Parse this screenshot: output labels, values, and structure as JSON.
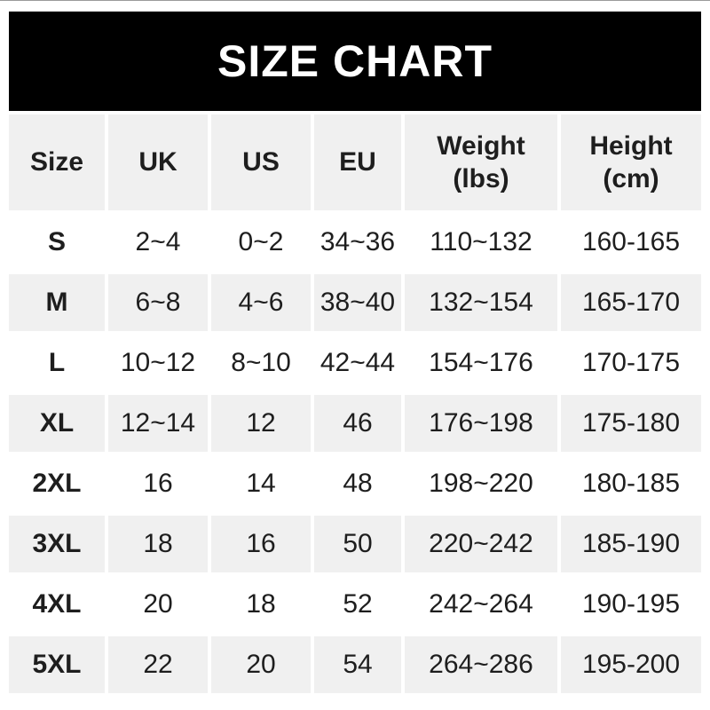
{
  "title": "SIZE CHART",
  "colors": {
    "banner_bg": "#000000",
    "banner_text": "#ffffff",
    "row_alt_bg": "#f0f0f0",
    "text": "#1e1e1e",
    "page_bg": "#ffffff"
  },
  "chart_data": {
    "type": "table",
    "title": "SIZE CHART",
    "columns": [
      "Size",
      "UK",
      "US",
      "EU",
      "Weight (lbs)",
      "Height (cm)"
    ],
    "rows": [
      {
        "size": "S",
        "uk": "2~4",
        "us": "0~2",
        "eu": "34~36",
        "weight": "110~132",
        "height": "160-165"
      },
      {
        "size": "M",
        "uk": "6~8",
        "us": "4~6",
        "eu": "38~40",
        "weight": "132~154",
        "height": "165-170"
      },
      {
        "size": "L",
        "uk": "10~12",
        "us": "8~10",
        "eu": "42~44",
        "weight": "154~176",
        "height": "170-175"
      },
      {
        "size": "XL",
        "uk": "12~14",
        "us": "12",
        "eu": "46",
        "weight": "176~198",
        "height": "175-180"
      },
      {
        "size": "2XL",
        "uk": "16",
        "us": "14",
        "eu": "48",
        "weight": "198~220",
        "height": "180-185"
      },
      {
        "size": "3XL",
        "uk": "18",
        "us": "16",
        "eu": "50",
        "weight": "220~242",
        "height": "185-190"
      },
      {
        "size": "4XL",
        "uk": "20",
        "us": "18",
        "eu": "52",
        "weight": "242~264",
        "height": "190-195"
      },
      {
        "size": "5XL",
        "uk": "22",
        "us": "20",
        "eu": "54",
        "weight": "264~286",
        "height": "195-200"
      }
    ]
  }
}
